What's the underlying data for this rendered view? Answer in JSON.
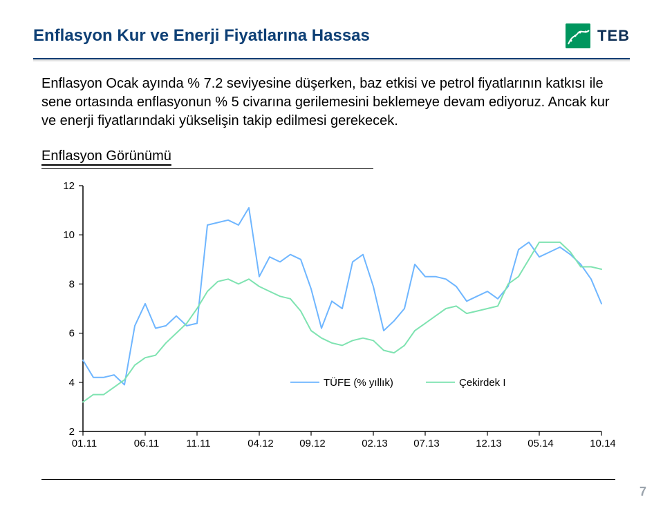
{
  "header": {
    "title": "Enflasyon Kur ve Enerji Fiyatlarına Hassas",
    "brand_text": "TEB",
    "brand_color": "#00965e",
    "brand_text_color": "#0d2f55"
  },
  "divider": {
    "color": "#0d3f75"
  },
  "paragraph": "Enflasyon Ocak ayında % 7.2 seviyesine düşerken, baz etkisi ve petrol fiyatlarının katkısı ile sene ortasında enflasyonun % 5 civarına gerilemesini beklemeye devam ediyoruz. Ancak kur ve enerji fiyatlarındaki yükselişin takip edilmesi gerekecek.",
  "chart": {
    "type": "line",
    "title": "Enflasyon Görünümü",
    "x_labels": [
      "01.11",
      "06.11",
      "11.11",
      "04.12",
      "09.12",
      "02.13",
      "07.13",
      "12.13",
      "05.14",
      "10.14"
    ],
    "ylim": [
      2,
      12
    ],
    "ytick_step": 2,
    "y_ticks": [
      2,
      4,
      6,
      8,
      10,
      12
    ],
    "x_tick_fontsize": 15,
    "y_tick_fontsize": 15,
    "axis_color": "#000000",
    "line_width": 2,
    "series": [
      {
        "name": "TÜFE (% yıllık)",
        "color": "#6fb6ff",
        "values": [
          4.9,
          4.2,
          4.2,
          4.3,
          3.9,
          6.3,
          7.2,
          6.2,
          6.3,
          6.7,
          6.3,
          6.4,
          10.4,
          10.5,
          10.6,
          10.4,
          11.1,
          8.3,
          9.1,
          8.9,
          9.2,
          9.0,
          7.8,
          6.2,
          7.3,
          7.0,
          8.9,
          9.2,
          7.9,
          6.1,
          6.5,
          7.0,
          8.8,
          8.3,
          8.3,
          8.2,
          7.9,
          7.3,
          7.5,
          7.7,
          7.4,
          7.9,
          9.4,
          9.7,
          9.1,
          9.3,
          9.5,
          9.2,
          8.8,
          8.2,
          7.2
        ]
      },
      {
        "name": "Çekirdek I",
        "color": "#7fe3b1",
        "values": [
          3.2,
          3.5,
          3.5,
          3.8,
          4.1,
          4.7,
          5.0,
          5.1,
          5.6,
          6.0,
          6.4,
          7.0,
          7.7,
          8.1,
          8.2,
          8.0,
          8.2,
          7.9,
          7.7,
          7.5,
          7.4,
          6.9,
          6.1,
          5.8,
          5.6,
          5.5,
          5.7,
          5.8,
          5.7,
          5.3,
          5.2,
          5.5,
          6.1,
          6.4,
          6.7,
          7.0,
          7.1,
          6.8,
          6.9,
          7.0,
          7.1,
          8.0,
          8.3,
          9.0,
          9.7,
          9.7,
          9.7,
          9.3,
          8.7,
          8.7,
          8.6
        ]
      }
    ],
    "legend": {
      "label_fontsize": 15
    }
  },
  "page_number": "7",
  "colors": {
    "title_color": "#0d3f75",
    "page_number_color": "#9aa3ac",
    "background": "#ffffff"
  }
}
